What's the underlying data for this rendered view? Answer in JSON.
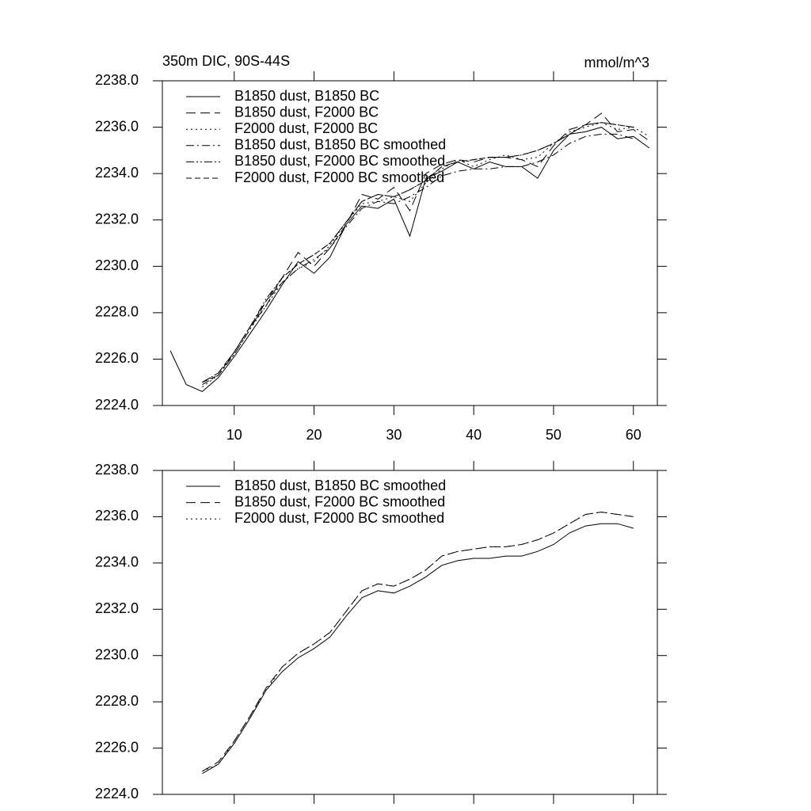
{
  "chart_data": [
    {
      "type": "line",
      "title": "350m DIC, 90S-44S",
      "units_label": "mmol/m^3",
      "x": [
        2,
        4,
        6,
        8,
        10,
        12,
        14,
        16,
        18,
        20,
        22,
        24,
        26,
        28,
        30,
        32,
        34,
        36,
        38,
        40,
        42,
        44,
        46,
        48,
        50,
        52,
        54,
        56,
        58,
        60,
        62
      ],
      "xlim": [
        1,
        63
      ],
      "xticks": [
        10,
        20,
        30,
        40,
        50,
        60
      ],
      "ylim": [
        2224,
        2238
      ],
      "yticks": [
        {
          "value": 2224,
          "label": "2224.0"
        },
        {
          "value": 2226,
          "label": "2226.0"
        },
        {
          "value": 2228,
          "label": "2228.0"
        },
        {
          "value": 2230,
          "label": "2230.0"
        },
        {
          "value": 2232,
          "label": "2232.0"
        },
        {
          "value": 2234,
          "label": "2234.0"
        },
        {
          "value": 2236,
          "label": "2236.0"
        },
        {
          "value": 2238,
          "label": "2238.0"
        }
      ],
      "legend": "upper-left",
      "series": [
        {
          "name": "B1850 dust, B1850 BC",
          "color": "#000000",
          "dash": "solid",
          "values": [
            2226.36,
            2224.9,
            2224.6,
            2225.2,
            2226.1,
            2227.1,
            2228.1,
            2229.2,
            2230.2,
            2229.7,
            2230.4,
            2231.8,
            2232.6,
            2232.5,
            2232.9,
            2231.3,
            2233.8,
            2234.1,
            2234.5,
            2234.2,
            2234.5,
            2234.3,
            2234.3,
            2233.8,
            2235.0,
            2235.7,
            2235.8,
            2236.0,
            2235.5,
            2235.6,
            2235.1
          ]
        },
        {
          "name": "B1850 dust, F2000 BC",
          "color": "#000000",
          "dash": "long-dash",
          "values": [
            null,
            null,
            2225.0,
            2225.4,
            2226.3,
            2227.4,
            2228.3,
            2229.5,
            2230.6,
            2230.0,
            2230.8,
            2231.8,
            2233.1,
            2232.9,
            2233.4,
            2232.4,
            2234.0,
            2234.4,
            2234.6,
            2234.5,
            2234.7,
            2234.7,
            2234.6,
            2234.3,
            2235.2,
            2235.9,
            2236.1,
            2236.6,
            2235.8,
            2235.9,
            2235.4
          ]
        },
        {
          "name": "F2000 dust, F2000 BC",
          "color": "#000000",
          "dash": "dot",
          "values": [
            null,
            null,
            2224.8,
            2225.3,
            2226.2,
            2227.3,
            2228.3,
            2229.3,
            2229.9,
            2230.2,
            2230.9,
            2231.9,
            2232.7,
            2232.8,
            2233.0,
            2232.8,
            2233.6,
            2234.2,
            2234.6,
            2234.3,
            2234.6,
            2234.8,
            2234.6,
            2234.7,
            2235.3,
            2235.8,
            2236.0,
            2236.2,
            2235.9,
            2236.0,
            2235.6
          ]
        },
        {
          "name": "B1850 dust, B1850 BC smoothed",
          "color": "#000000",
          "dash": "dash-dot",
          "values": [
            null,
            null,
            2224.9,
            2225.3,
            2226.2,
            2227.3,
            2228.5,
            2229.3,
            2229.9,
            2230.3,
            2230.8,
            2231.7,
            2232.5,
            2232.8,
            2232.7,
            2233.0,
            2233.4,
            2233.9,
            2234.1,
            2234.2,
            2234.2,
            2234.3,
            2234.3,
            2234.5,
            2234.8,
            2235.3,
            2235.6,
            2235.7,
            2235.7,
            2235.5,
            null
          ]
        },
        {
          "name": "B1850 dust, F2000 BC smoothed",
          "color": "#000000",
          "dash": "dash-dot-dot",
          "values": [
            null,
            null,
            2225.0,
            2225.4,
            2226.3,
            2227.4,
            2228.6,
            2229.5,
            2230.1,
            2230.5,
            2231.0,
            2231.9,
            2232.8,
            2233.1,
            2233.0,
            2233.3,
            2233.7,
            2234.3,
            2234.5,
            2234.6,
            2234.7,
            2234.7,
            2234.8,
            2235.0,
            2235.3,
            2235.7,
            2236.1,
            2236.2,
            2236.1,
            2236.0,
            null
          ]
        },
        {
          "name": "F2000 dust, F2000 BC smoothed",
          "color": "#000000",
          "dash": "dash",
          "values": [
            null,
            null,
            2225.0,
            2225.3,
            2226.3,
            2227.4,
            2228.5,
            2229.5,
            2230.1,
            2230.5,
            2231.0,
            2231.9,
            2232.8,
            2233.1,
            2233.0,
            2233.3,
            2233.7,
            2234.3,
            2234.5,
            2234.6,
            2234.7,
            2234.7,
            2234.8,
            2235.0,
            2235.3,
            2235.7,
            2236.1,
            2236.2,
            2236.1,
            2236.0,
            null
          ]
        }
      ]
    },
    {
      "type": "line",
      "x": [
        2,
        4,
        6,
        8,
        10,
        12,
        14,
        16,
        18,
        20,
        22,
        24,
        26,
        28,
        30,
        32,
        34,
        36,
        38,
        40,
        42,
        44,
        46,
        48,
        50,
        52,
        54,
        56,
        58,
        60,
        62
      ],
      "xlim": [
        1,
        63
      ],
      "xticks": [
        10,
        20,
        30,
        40,
        50,
        60
      ],
      "ylim": [
        2224,
        2238
      ],
      "yticks": [
        {
          "value": 2224,
          "label": "2224.0"
        },
        {
          "value": 2226,
          "label": "2226.0"
        },
        {
          "value": 2228,
          "label": "2228.0"
        },
        {
          "value": 2230,
          "label": "2230.0"
        },
        {
          "value": 2232,
          "label": "2232.0"
        },
        {
          "value": 2234,
          "label": "2234.0"
        },
        {
          "value": 2236,
          "label": "2236.0"
        },
        {
          "value": 2238,
          "label": "2238.0"
        }
      ],
      "legend": "upper-left",
      "series": [
        {
          "name": "B1850 dust, B1850 BC smoothed",
          "color": "#000000",
          "dash": "solid",
          "values": [
            null,
            null,
            2224.9,
            2225.3,
            2226.2,
            2227.3,
            2228.5,
            2229.3,
            2229.9,
            2230.3,
            2230.8,
            2231.7,
            2232.5,
            2232.8,
            2232.7,
            2233.0,
            2233.4,
            2233.9,
            2234.1,
            2234.2,
            2234.2,
            2234.3,
            2234.3,
            2234.5,
            2234.8,
            2235.3,
            2235.6,
            2235.7,
            2235.7,
            2235.5,
            null
          ]
        },
        {
          "name": "B1850 dust, F2000 BC smoothed",
          "color": "#000000",
          "dash": "long-dash",
          "values": [
            null,
            null,
            2225.0,
            2225.4,
            2226.3,
            2227.4,
            2228.6,
            2229.5,
            2230.1,
            2230.5,
            2231.0,
            2231.9,
            2232.8,
            2233.1,
            2233.0,
            2233.3,
            2233.7,
            2234.3,
            2234.5,
            2234.6,
            2234.7,
            2234.7,
            2234.8,
            2235.0,
            2235.3,
            2235.7,
            2236.1,
            2236.2,
            2236.1,
            2236.0,
            null
          ]
        },
        {
          "name": "F2000 dust, F2000 BC smoothed",
          "color": "#000000",
          "dash": "dot",
          "values": [
            null,
            null,
            2225.0,
            2225.3,
            2226.3,
            2227.4,
            2228.5,
            2229.5,
            2230.1,
            2230.5,
            2231.0,
            2231.9,
            2232.8,
            2233.1,
            2233.0,
            2233.3,
            2233.7,
            2234.3,
            2234.5,
            2234.6,
            2234.7,
            2234.7,
            2234.8,
            2235.0,
            2235.3,
            2235.7,
            2236.1,
            2236.2,
            2236.1,
            2236.0,
            null
          ]
        }
      ]
    }
  ]
}
